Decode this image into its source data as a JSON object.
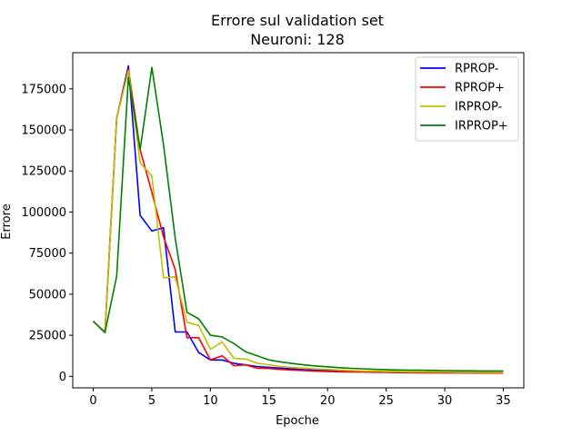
{
  "chart_data": {
    "type": "line",
    "title": "Errore sul validation set",
    "subtitle": "Neuroni: 128",
    "xlabel": "Epoche",
    "ylabel": "Errore",
    "xlim": [
      -1.75,
      36.75
    ],
    "ylim": [
      -7000,
      197000
    ],
    "xticks": [
      0,
      5,
      10,
      15,
      20,
      25,
      30,
      35
    ],
    "yticks": [
      0,
      25000,
      50000,
      75000,
      100000,
      125000,
      150000,
      175000
    ],
    "legend_position": "top-right",
    "grid": false,
    "x": [
      0,
      1,
      2,
      3,
      4,
      5,
      6,
      7,
      8,
      9,
      10,
      11,
      12,
      13,
      14,
      15,
      16,
      17,
      18,
      19,
      20,
      21,
      22,
      23,
      24,
      25,
      26,
      27,
      28,
      29,
      30,
      31,
      32,
      33,
      34,
      35
    ],
    "series": [
      {
        "name": "RPROP-",
        "color": "#0000ff",
        "values": [
          33500,
          26700,
          157000,
          189000,
          98000,
          88500,
          90500,
          27000,
          27000,
          14500,
          10000,
          10000,
          8000,
          7000,
          6000,
          5500,
          5000,
          4500,
          4000,
          3800,
          3500,
          3200,
          3000,
          2900,
          2800,
          2700,
          2600,
          2500,
          2400,
          2300,
          2200,
          2100,
          2100,
          2000,
          2000,
          2000
        ]
      },
      {
        "name": "RPROP+",
        "color": "#ff0000",
        "values": [
          33500,
          26700,
          157000,
          187000,
          138000,
          112000,
          85000,
          65000,
          23500,
          23500,
          10000,
          12500,
          6500,
          7000,
          5000,
          4800,
          4200,
          3800,
          3500,
          3200,
          3000,
          2800,
          2700,
          2600,
          2500,
          2400,
          2300,
          2300,
          2200,
          2200,
          2100,
          2100,
          2100,
          2000,
          2000,
          2000
        ]
      },
      {
        "name": "IRPROP-",
        "color": "#bfbf00",
        "values": [
          33500,
          26700,
          157000,
          186000,
          130000,
          122000,
          60000,
          60500,
          33000,
          31000,
          16500,
          21000,
          11000,
          10500,
          8000,
          7000,
          6000,
          5500,
          5000,
          4500,
          4200,
          3800,
          3500,
          3300,
          3100,
          3000,
          2900,
          2800,
          2700,
          2600,
          2600,
          2500,
          2500,
          2400,
          2400,
          2400
        ]
      },
      {
        "name": "IRPROP+",
        "color": "#008000",
        "values": [
          33500,
          26700,
          61000,
          182000,
          138000,
          188000,
          141000,
          84000,
          39000,
          35000,
          25000,
          24000,
          20000,
          15000,
          12500,
          10000,
          8800,
          7800,
          7000,
          6300,
          5800,
          5300,
          4900,
          4600,
          4300,
          4100,
          3900,
          3800,
          3700,
          3600,
          3500,
          3400,
          3400,
          3300,
          3300,
          3300
        ]
      }
    ]
  }
}
